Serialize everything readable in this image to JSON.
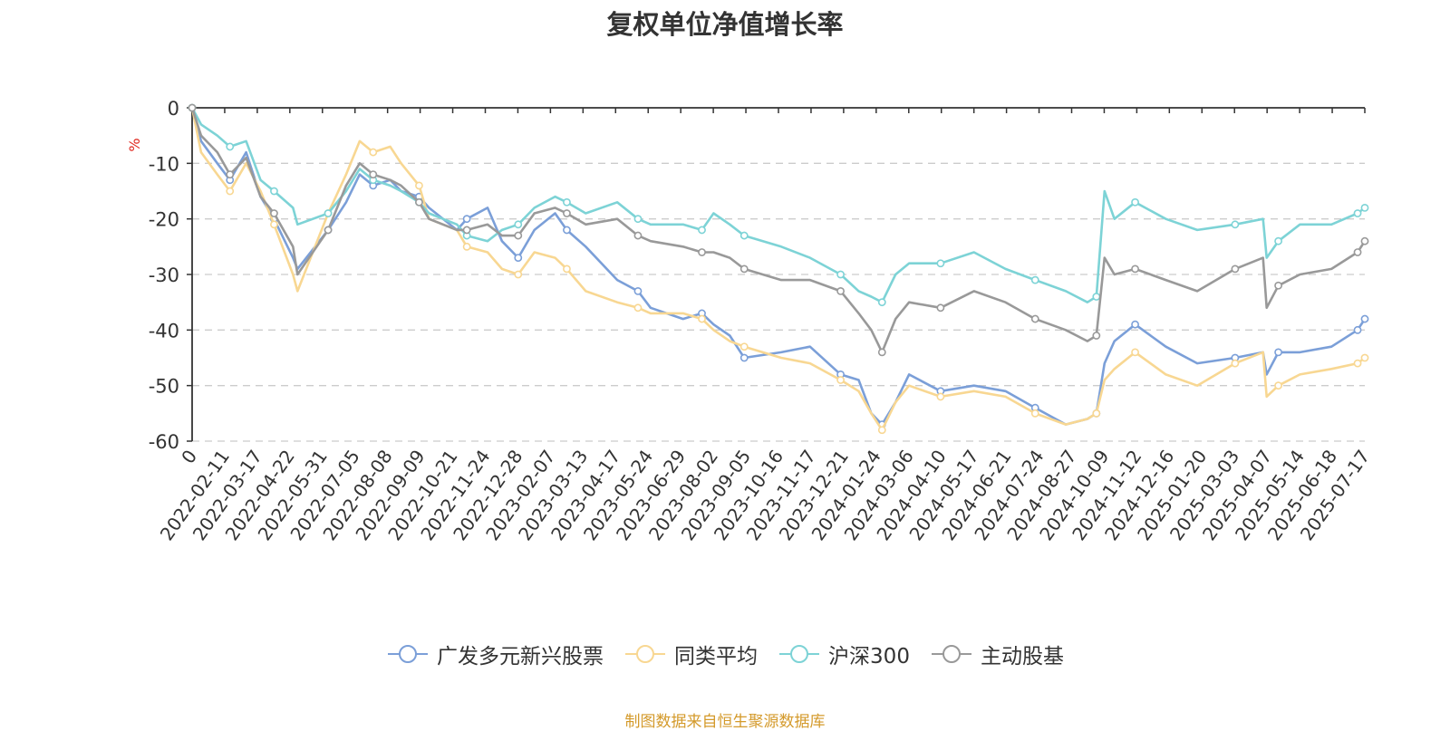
{
  "title": "复权单位净值增长率",
  "footer": "制图数据来自恒生聚源数据库",
  "chart_data": {
    "type": "line",
    "title": "复权单位净值增长率",
    "ylabel": "%",
    "ylim": [
      -60,
      0
    ],
    "yticks": [
      0,
      -10,
      -20,
      -30,
      -40,
      -50,
      -60
    ],
    "grid": true,
    "legend_position": "bottom",
    "x_start": "2021-12-31",
    "x_end": "2025-07-25",
    "xticks": [
      "0",
      "2022-02-11",
      "2022-03-17",
      "2022-04-22",
      "2022-05-31",
      "2022-07-05",
      "2022-08-08",
      "2022-09-09",
      "2022-10-21",
      "2022-11-24",
      "2022-12-28",
      "2023-02-07",
      "2023-03-13",
      "2023-04-17",
      "2023-05-24",
      "2023-06-29",
      "2023-08-02",
      "2023-09-05",
      "2023-10-16",
      "2023-11-17",
      "2023-12-21",
      "2024-01-24",
      "2024-03-06",
      "2024-04-10",
      "2024-05-17",
      "2024-06-21",
      "2024-07-24",
      "2024-08-27",
      "2024-10-09",
      "2024-11-12",
      "2024-12-16",
      "2025-01-20",
      "2025-03-03",
      "2025-04-07",
      "2025-05-14",
      "2025-06-18",
      "2025-07-17"
    ],
    "series": [
      {
        "name": "广发多元新兴股票",
        "color": "#7b9fd8",
        "x": [
          "2021-12-31",
          "2022-01-10",
          "2022-01-28",
          "2022-02-11",
          "2022-03-01",
          "2022-03-17",
          "2022-04-01",
          "2022-04-22",
          "2022-04-27",
          "2022-05-31",
          "2022-06-20",
          "2022-07-05",
          "2022-07-20",
          "2022-08-08",
          "2022-08-20",
          "2022-09-09",
          "2022-09-20",
          "2022-10-21",
          "2022-11-01",
          "2022-11-24",
          "2022-12-10",
          "2022-12-28",
          "2023-01-15",
          "2023-02-07",
          "2023-02-20",
          "2023-03-13",
          "2023-04-17",
          "2023-05-10",
          "2023-05-24",
          "2023-06-29",
          "2023-07-20",
          "2023-08-02",
          "2023-08-20",
          "2023-09-05",
          "2023-10-16",
          "2023-11-17",
          "2023-12-21",
          "2024-01-10",
          "2024-01-24",
          "2024-02-05",
          "2024-02-20",
          "2024-03-06",
          "2024-04-10",
          "2024-05-17",
          "2024-06-21",
          "2024-07-24",
          "2024-08-27",
          "2024-09-20",
          "2024-09-30",
          "2024-10-09",
          "2024-10-20",
          "2024-11-12",
          "2024-12-16",
          "2025-01-20",
          "2025-03-03",
          "2025-04-03",
          "2025-04-07",
          "2025-04-20",
          "2025-05-14",
          "2025-06-18",
          "2025-07-17",
          "2025-07-25"
        ],
        "values": [
          0,
          -6,
          -10,
          -13,
          -8,
          -16,
          -20,
          -27,
          -29,
          -22,
          -17,
          -12,
          -14,
          -13,
          -15,
          -16,
          -18,
          -22,
          -20,
          -18,
          -24,
          -27,
          -22,
          -19,
          -22,
          -25,
          -31,
          -33,
          -36,
          -38,
          -37,
          -39,
          -41,
          -45,
          -44,
          -43,
          -48,
          -49,
          -55,
          -57,
          -53,
          -48,
          -51,
          -50,
          -51,
          -54,
          -57,
          -56,
          -55,
          -46,
          -42,
          -39,
          -43,
          -46,
          -45,
          -44,
          -48,
          -44,
          -44,
          -43,
          -40,
          -38
        ]
      },
      {
        "name": "同类平均",
        "color": "#f8d792",
        "x": [
          "2021-12-31",
          "2022-01-10",
          "2022-01-28",
          "2022-02-11",
          "2022-03-01",
          "2022-03-17",
          "2022-04-01",
          "2022-04-22",
          "2022-04-27",
          "2022-05-31",
          "2022-06-20",
          "2022-07-05",
          "2022-07-20",
          "2022-08-08",
          "2022-08-20",
          "2022-09-09",
          "2022-09-20",
          "2022-10-21",
          "2022-11-01",
          "2022-11-24",
          "2022-12-10",
          "2022-12-28",
          "2023-01-15",
          "2023-02-07",
          "2023-02-20",
          "2023-03-13",
          "2023-04-17",
          "2023-05-10",
          "2023-05-24",
          "2023-06-29",
          "2023-07-20",
          "2023-08-02",
          "2023-08-20",
          "2023-09-05",
          "2023-10-16",
          "2023-11-17",
          "2023-12-21",
          "2024-01-10",
          "2024-01-24",
          "2024-02-05",
          "2024-02-20",
          "2024-03-06",
          "2024-04-10",
          "2024-05-17",
          "2024-06-21",
          "2024-07-24",
          "2024-08-27",
          "2024-09-20",
          "2024-09-30",
          "2024-10-09",
          "2024-10-20",
          "2024-11-12",
          "2024-12-16",
          "2025-01-20",
          "2025-03-03",
          "2025-04-03",
          "2025-04-07",
          "2025-04-20",
          "2025-05-14",
          "2025-06-18",
          "2025-07-17",
          "2025-07-25"
        ],
        "values": [
          0,
          -8,
          -12,
          -15,
          -10,
          -15,
          -21,
          -30,
          -33,
          -19,
          -12,
          -6,
          -8,
          -7,
          -10,
          -14,
          -20,
          -22,
          -25,
          -26,
          -29,
          -30,
          -26,
          -27,
          -29,
          -33,
          -35,
          -36,
          -37,
          -37,
          -38,
          -40,
          -42,
          -43,
          -45,
          -46,
          -49,
          -51,
          -55,
          -58,
          -53,
          -50,
          -52,
          -51,
          -52,
          -55,
          -57,
          -56,
          -55,
          -49,
          -47,
          -44,
          -48,
          -50,
          -46,
          -44,
          -52,
          -50,
          -48,
          -47,
          -46,
          -45
        ]
      },
      {
        "name": "沪深300",
        "color": "#7dd3d6",
        "x": [
          "2021-12-31",
          "2022-01-10",
          "2022-01-28",
          "2022-02-11",
          "2022-03-01",
          "2022-03-17",
          "2022-04-01",
          "2022-04-22",
          "2022-04-27",
          "2022-05-31",
          "2022-06-20",
          "2022-07-05",
          "2022-07-20",
          "2022-08-08",
          "2022-08-20",
          "2022-09-09",
          "2022-09-20",
          "2022-10-21",
          "2022-11-01",
          "2022-11-24",
          "2022-12-10",
          "2022-12-28",
          "2023-01-15",
          "2023-02-07",
          "2023-02-20",
          "2023-03-13",
          "2023-04-17",
          "2023-05-10",
          "2023-05-24",
          "2023-06-29",
          "2023-07-20",
          "2023-08-02",
          "2023-08-20",
          "2023-09-05",
          "2023-10-16",
          "2023-11-17",
          "2023-12-21",
          "2024-01-10",
          "2024-01-24",
          "2024-02-05",
          "2024-02-20",
          "2024-03-06",
          "2024-04-10",
          "2024-05-17",
          "2024-06-21",
          "2024-07-24",
          "2024-08-27",
          "2024-09-20",
          "2024-09-30",
          "2024-10-09",
          "2024-10-20",
          "2024-11-12",
          "2024-12-16",
          "2025-01-20",
          "2025-03-03",
          "2025-04-03",
          "2025-04-07",
          "2025-04-20",
          "2025-05-14",
          "2025-06-18",
          "2025-07-17",
          "2025-07-25"
        ],
        "values": [
          0,
          -3,
          -5,
          -7,
          -6,
          -13,
          -15,
          -18,
          -21,
          -19,
          -15,
          -11,
          -13,
          -14,
          -15,
          -17,
          -19,
          -21,
          -23,
          -24,
          -22,
          -21,
          -18,
          -16,
          -17,
          -19,
          -17,
          -20,
          -21,
          -21,
          -22,
          -19,
          -21,
          -23,
          -25,
          -27,
          -30,
          -33,
          -34,
          -35,
          -30,
          -28,
          -28,
          -26,
          -29,
          -31,
          -33,
          -35,
          -34,
          -15,
          -20,
          -17,
          -20,
          -22,
          -21,
          -20,
          -27,
          -24,
          -21,
          -21,
          -19,
          -18
        ]
      },
      {
        "name": "主动股基",
        "color": "#999999",
        "x": [
          "2021-12-31",
          "2022-01-10",
          "2022-01-28",
          "2022-02-11",
          "2022-03-01",
          "2022-03-17",
          "2022-04-01",
          "2022-04-22",
          "2022-04-27",
          "2022-05-31",
          "2022-06-20",
          "2022-07-05",
          "2022-07-20",
          "2022-08-08",
          "2022-08-20",
          "2022-09-09",
          "2022-09-20",
          "2022-10-21",
          "2022-11-01",
          "2022-11-24",
          "2022-12-10",
          "2022-12-28",
          "2023-01-15",
          "2023-02-07",
          "2023-02-20",
          "2023-03-13",
          "2023-04-17",
          "2023-05-10",
          "2023-05-24",
          "2023-06-29",
          "2023-07-20",
          "2023-08-02",
          "2023-08-20",
          "2023-09-05",
          "2023-10-16",
          "2023-11-17",
          "2023-12-21",
          "2024-01-10",
          "2024-01-24",
          "2024-02-05",
          "2024-02-20",
          "2024-03-06",
          "2024-04-10",
          "2024-05-17",
          "2024-06-21",
          "2024-07-24",
          "2024-08-27",
          "2024-09-20",
          "2024-09-30",
          "2024-10-09",
          "2024-10-20",
          "2024-11-12",
          "2024-12-16",
          "2025-01-20",
          "2025-03-03",
          "2025-04-03",
          "2025-04-07",
          "2025-04-20",
          "2025-05-14",
          "2025-06-18",
          "2025-07-17",
          "2025-07-25"
        ],
        "values": [
          0,
          -5,
          -8,
          -12,
          -9,
          -16,
          -19,
          -25,
          -30,
          -22,
          -14,
          -10,
          -12,
          -13,
          -14,
          -17,
          -20,
          -22,
          -22,
          -21,
          -23,
          -23,
          -19,
          -18,
          -19,
          -21,
          -20,
          -23,
          -24,
          -25,
          -26,
          -26,
          -27,
          -29,
          -31,
          -31,
          -33,
          -37,
          -40,
          -44,
          -38,
          -35,
          -36,
          -33,
          -35,
          -38,
          -40,
          -42,
          -41,
          -27,
          -30,
          -29,
          -31,
          -33,
          -29,
          -27,
          -36,
          -32,
          -30,
          -29,
          -26,
          -24
        ]
      }
    ]
  }
}
